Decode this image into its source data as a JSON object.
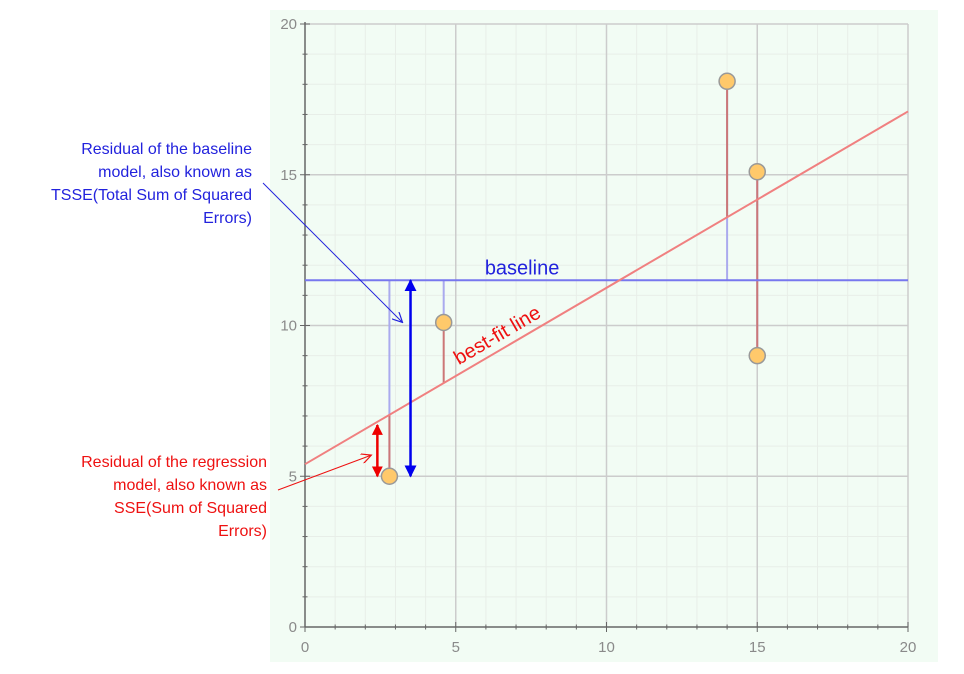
{
  "chart_data": {
    "type": "scatter",
    "xlim": [
      0,
      20
    ],
    "ylim": [
      0,
      20
    ],
    "x_major_ticks": [
      0,
      5,
      10,
      15,
      20
    ],
    "y_major_ticks": [
      0,
      5,
      10,
      15,
      20
    ],
    "grid": true,
    "points": [
      {
        "x": 2.8,
        "y": 5.0
      },
      {
        "x": 4.6,
        "y": 10.1
      },
      {
        "x": 14.0,
        "y": 18.1
      },
      {
        "x": 15.0,
        "y": 15.1
      },
      {
        "x": 15.0,
        "y": 9.0
      }
    ],
    "baseline": {
      "label": "baseline",
      "y": 11.5
    },
    "best_fit": {
      "label": "best-fit line",
      "intercept": 5.4,
      "slope": 0.585
    },
    "baseline_residual_arrow": {
      "x": 3.5,
      "from": 5.0,
      "to": 11.5
    },
    "regression_residual_arrow": {
      "x": 2.4,
      "from": 5.0,
      "to": 6.7
    }
  },
  "annotations": {
    "tsse_lines": [
      "Residual  of the baseline",
      "model, also known as",
      "TSSE(Total Sum of Squared",
      "Errors)"
    ],
    "sse_lines": [
      "Residual  of the regression",
      "model, also known as",
      "SSE(Sum of Squared",
      "Errors)"
    ]
  },
  "colors": {
    "plot_background": "#f2fcf4",
    "grid_major": "#cccccc",
    "grid_minor": "#e8eee8",
    "axis": "#666666",
    "baseline": "#7777ee",
    "best_fit": "#f08080",
    "regression_residual": "#cc7777",
    "baseline_residual": "#aaaaee",
    "point_fill": "#ffc96b",
    "point_stroke": "#999999",
    "tsse": "#2222dd",
    "sse": "#ee1111",
    "baseline_arrow": "#0000ee",
    "sse_arrow": "#ee0000"
  }
}
